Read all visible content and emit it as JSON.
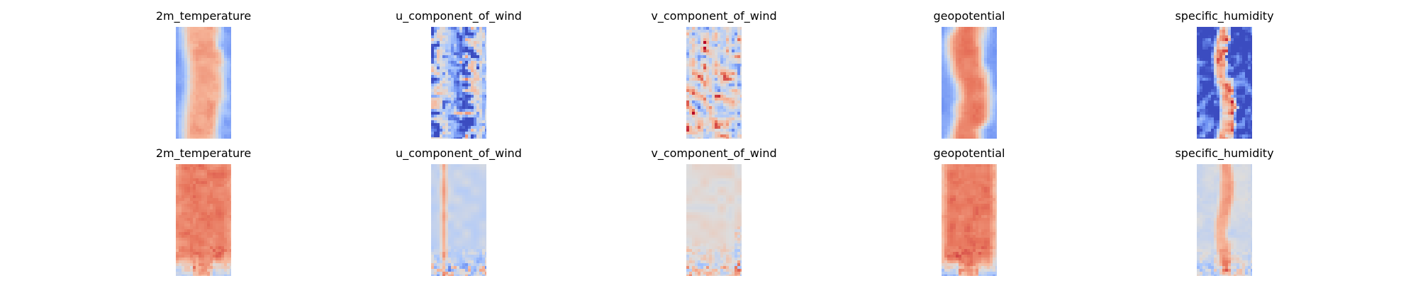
{
  "chart_data": {
    "type": "heatmap",
    "colormap": "coolwarm",
    "colormap_stops": [
      "#3b4cc0",
      "#7093f3",
      "#aac7fd",
      "#dddcdc",
      "#f7b89c",
      "#e7745b",
      "#b40426"
    ],
    "axes_visible": false,
    "grid": false,
    "legend": "none",
    "value_range": [
      0,
      1
    ],
    "panels": [
      {
        "row": 0,
        "col": 0,
        "title": "2m_temperature",
        "variable": "2m_temperature",
        "pattern": "core",
        "params": {
          "base": 0.72,
          "edge": 0.22,
          "width": 0.36,
          "wobble": 0.05,
          "noise": 0.05,
          "noise_scale": 3,
          "seed": 11
        }
      },
      {
        "row": 0,
        "col": 1,
        "title": "u_component_of_wind",
        "variable": "u_component_of_wind",
        "pattern": "streaks",
        "params": {
          "base": 0.3,
          "amp": 0.32,
          "freq": 9,
          "noise": 0.22,
          "noise_scale": 2,
          "seed": 23
        }
      },
      {
        "row": 0,
        "col": 2,
        "title": "v_component_of_wind",
        "variable": "v_component_of_wind",
        "pattern": "patchy",
        "params": {
          "base": 0.5,
          "amp": 0.28,
          "noise_scale": 2,
          "seed": 37
        }
      },
      {
        "row": 0,
        "col": 3,
        "title": "geopotential",
        "variable": "geopotential",
        "pattern": "core",
        "params": {
          "base": 0.8,
          "edge": 0.2,
          "width": 0.34,
          "wobble": 0.1,
          "noise": 0.04,
          "noise_scale": 4,
          "seed": 41
        }
      },
      {
        "row": 0,
        "col": 4,
        "title": "specific_humidity",
        "variable": "specific_humidity",
        "pattern": "core",
        "params": {
          "base": 0.74,
          "edge": 0.02,
          "width": 0.14,
          "wobble": 0.08,
          "noise": 0.22,
          "noise_scale": 2,
          "seed": 53
        }
      },
      {
        "row": 1,
        "col": 0,
        "title": "2m_temperature",
        "variable": "2m_temperature",
        "pattern": "smooth",
        "params": {
          "base": 0.8,
          "edge": 0.75,
          "bottom": 0.35,
          "noise": 0.05,
          "seed": 61
        }
      },
      {
        "row": 1,
        "col": 1,
        "title": "u_component_of_wind",
        "variable": "u_component_of_wind",
        "pattern": "stripe",
        "params": {
          "base": 0.42,
          "stripe": 0.7,
          "pos": 0.22,
          "bottom_noise": 0.4,
          "seed": 71
        }
      },
      {
        "row": 1,
        "col": 2,
        "title": "v_component_of_wind",
        "variable": "v_component_of_wind",
        "pattern": "flat",
        "params": {
          "base": 0.52,
          "noise": 0.05,
          "bottom_noise": 0.35,
          "seed": 83
        }
      },
      {
        "row": 1,
        "col": 3,
        "title": "geopotential",
        "variable": "geopotential",
        "pattern": "smooth",
        "params": {
          "base": 0.82,
          "edge": 0.66,
          "bottom": 0.3,
          "noise": 0.04,
          "seed": 97
        }
      },
      {
        "row": 1,
        "col": 4,
        "title": "specific_humidity",
        "variable": "specific_humidity",
        "pattern": "core",
        "params": {
          "base": 0.72,
          "edge": 0.46,
          "width": 0.12,
          "wobble": 0.05,
          "noise": 0.05,
          "noise_scale": 4,
          "bottom_noise": 0.25,
          "seed": 101
        }
      }
    ]
  }
}
